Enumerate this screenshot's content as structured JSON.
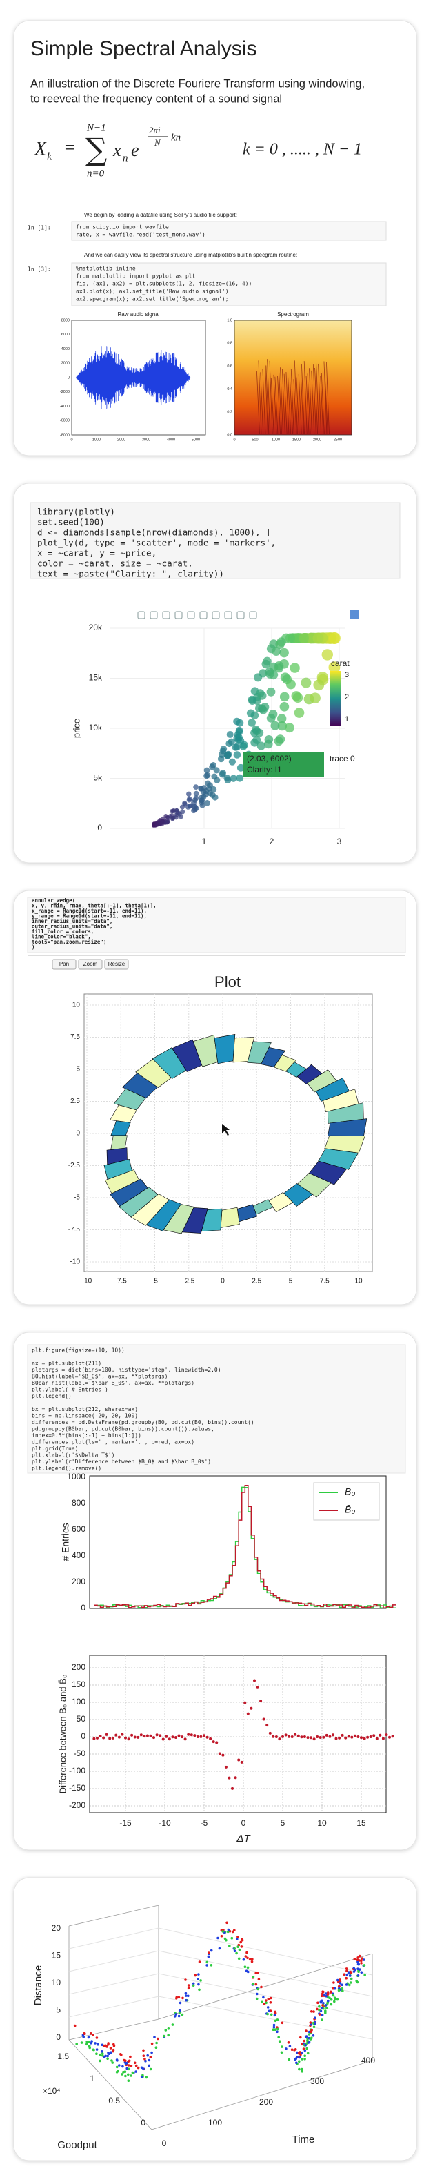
{
  "card1": {
    "title": "Simple Spectral Analysis",
    "description": [
      "An illustration of the Discrete Fouriere Transform using windowing,",
      "to reeveal the frequency content of a sound signal"
    ],
    "formula": {
      "X": "X",
      "k": "k",
      "eq": "=",
      "top": "N−1",
      "sigma": "∑",
      "bottom": "n=0",
      "x": "x",
      "n": "n",
      "e": "e",
      "minus": "−",
      "num": "2πi",
      "den": "N",
      "kn": "kn",
      "range": "k  =  0 , ..... , N − 1"
    },
    "text1": "We begin by loading a datafile using SciPy's audio file support:",
    "prompt1": "In [1]:",
    "code1": [
      "from scipy.io import wavfile",
      "rate, x = wavfile.read('test_mono.wav')"
    ],
    "text2": "And we can easily view its spectral structure using matplotlib's builtin specgram routine:",
    "prompt2": "In [3]:",
    "code2": [
      "%matplotlib inline",
      "from matplotlib import pyplot as plt",
      "fig, (ax1, ax2) = plt.subplots(1, 2, figsize=(16, 4))",
      "ax1.plot(x); ax1.set_title('Raw audio signal')",
      "ax2.specgram(x); ax2.set_title('Spectrogram');"
    ],
    "plot1": {
      "title": "Raw audio signal",
      "yticks": [
        "8000",
        "6000",
        "4000",
        "2000",
        "0",
        "-2000",
        "-4000",
        "-6000",
        "-8000"
      ],
      "xticks": [
        "0",
        "1000",
        "2000",
        "3000",
        "4000",
        "5000"
      ]
    },
    "plot2": {
      "title": "Spectrogram",
      "yticks": [
        "1.0",
        "0.8",
        "0.6",
        "0.4",
        "0.2",
        "0.0"
      ],
      "xticks": [
        "0",
        "500",
        "1000",
        "1500",
        "2000",
        "2500"
      ]
    }
  },
  "card2": {
    "code": [
      "library(plotly)",
      "set.seed(100)",
      "d <- diamonds[sample(nrow(diamonds), 1000), ]",
      "plot_ly(d, type = 'scatter', mode = 'markers',",
      "        x = ~carat, y = ~price,",
      "        color = ~carat, size = ~carat,",
      "        text = ~paste(\"Clarity: \", clarity))"
    ],
    "plot": {
      "ylabel": "price",
      "yticks": [
        "0",
        "5k",
        "10k",
        "15k",
        "20k"
      ],
      "xticks": [
        "1",
        "2",
        "3"
      ],
      "colorbar": {
        "title": "carat",
        "ticks": [
          "3",
          "2",
          "1"
        ]
      },
      "tooltip": {
        "point": "(2.03, 6002)",
        "text": "Clarity:  I1",
        "trace": "trace 0"
      }
    }
  },
  "card3": {
    "code": [
      "annular_wedge(",
      "    x, y, rmin, rmax, theta[:-1], theta[1:],",
      "    x_range = Range1d(start=-11, end=11),",
      "    y_range = Range1d(start=-11, end=11),",
      "    inner_radius_units=\"data\",",
      "    outer_radius_units=\"data\",",
      "    fill_color = colors,",
      "    line_color=\"black\",",
      "    tools=\"pan,zoom,resize\")",
      ")"
    ],
    "buttons": [
      "Pan",
      "Zoom",
      "Resize"
    ],
    "plot": {
      "title": "Plot",
      "xticks": [
        "-10",
        "-7.5",
        "-5",
        "-2.5",
        "0",
        "2.5",
        "5",
        "7.5",
        "10"
      ],
      "yticks": [
        "10",
        "7.5",
        "5",
        "2.5",
        "0",
        "-2.5",
        "-5",
        "-7.5",
        "-10"
      ]
    }
  },
  "card4": {
    "code": [
      "plt.figure(figsize=(10, 10))",
      "",
      "ax = plt.subplot(211)",
      "plotargs = dict(bins=100, histtype='step', linewidth=2.0)",
      "B0.hist(label='$B_0$', ax=ax, **plotargs)",
      "B0bar.hist(label='$\\bar B_0$', ax=ax, **plotargs)",
      "plt.ylabel('# Entries')",
      "plt.legend()",
      "",
      "bx = plt.subplot(212, sharex=ax)",
      "bins = np.linspace(-20, 20, 100)",
      "differences = pd.DataFrame(pd.groupby(B0, pd.cut(B0, bins)).count()",
      "                 pd.groupby(B0bar, pd.cut(B0bar, bins)).count()).values,",
      "                 index=0.5*(bins[:-1] + bins[1:]))",
      "differences.plot(ls='', marker='.', c=red, ax=bx)",
      "plt.grid(True)",
      "plt.xlabel(r'$\\Delta T$')",
      "plt.ylabel(r'Difference between $B_0$ and $\\bar B_0$')",
      "plt.legend().remove()"
    ],
    "top": {
      "ylabel": "# Entries",
      "yticks": [
        "0",
        "200",
        "400",
        "600",
        "800",
        "1000"
      ],
      "legend": [
        "B₀",
        "B̄₀"
      ]
    },
    "bottom": {
      "ylabel": "Difference between B₀ and B̄₀",
      "yticks": [
        "200",
        "150",
        "100",
        "50",
        "0",
        "-50",
        "-100",
        "-150",
        "-200"
      ],
      "xticks": [
        "-15",
        "-10",
        "-5",
        "0",
        "5",
        "10",
        "15"
      ],
      "xlabel": "ΔT"
    }
  },
  "card5": {
    "zlabel": "Distance",
    "zticks": [
      "20",
      "15",
      "10",
      "5",
      "0"
    ],
    "ylabel": "Goodput",
    "yticks": [
      "1.5",
      "1",
      "0.5",
      "0"
    ],
    "multiplier": "×10⁴",
    "xlabel": "Time",
    "xticks": [
      "0",
      "100",
      "200",
      "300",
      "400"
    ]
  }
}
